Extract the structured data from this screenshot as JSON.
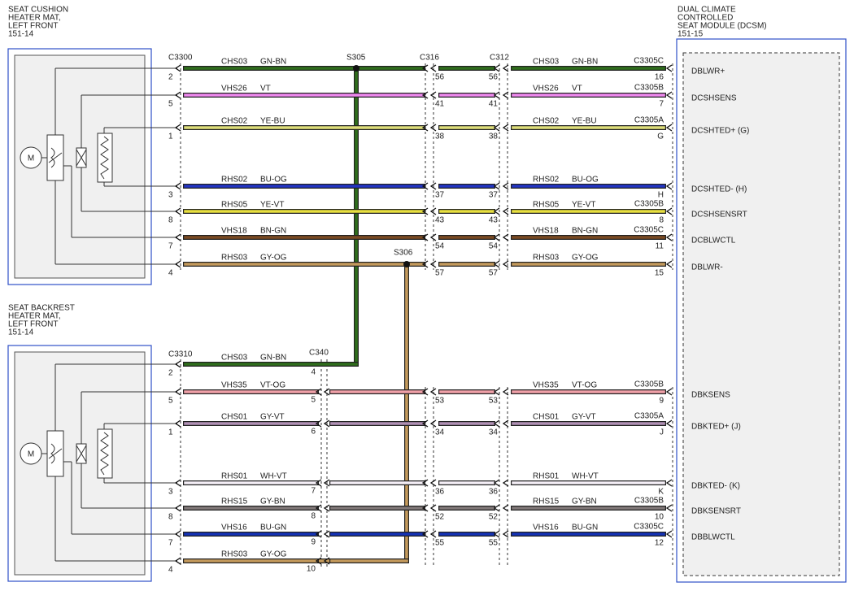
{
  "components": {
    "cushion": {
      "lines": [
        "SEAT CUSHION",
        "HEATER MAT,",
        "LEFT FRONT",
        "151-14"
      ],
      "motor": "M"
    },
    "backrest": {
      "lines": [
        "SEAT BACKREST",
        "HEATER MAT,",
        "LEFT FRONT",
        "151-14"
      ],
      "motor": "M"
    },
    "dcsm": {
      "lines": [
        "DUAL CLIMATE",
        "CONTROLLED",
        "SEAT MODULE (DCSM)",
        "151-15"
      ]
    }
  },
  "connectors": {
    "c3300": "C3300",
    "s305": "S305",
    "c316": "C316",
    "c312": "C312",
    "c3310": "C3310",
    "c340": "C340",
    "s306": "S306"
  },
  "top_rows": [
    {
      "left_pin": "2",
      "circuit": "CHS03",
      "color_code": "GN-BN",
      "wire_color": "#2f6e1c",
      "c316_pin": "56",
      "c312_pin": "56",
      "right_circuit": "CHS03",
      "right_color_code": "GN-BN",
      "right_connector": "C3305C",
      "right_pin": "16",
      "signal": "DBLWR+"
    },
    {
      "left_pin": "5",
      "circuit": "VHS26",
      "color_code": "VT",
      "wire_color": "#ee88ee",
      "c316_pin": "41",
      "c312_pin": "41",
      "right_circuit": "VHS26",
      "right_color_code": "VT",
      "right_connector": "C3305B",
      "right_pin": "7",
      "signal": "DCSHSENS"
    },
    {
      "left_pin": "1",
      "circuit": "CHS02",
      "color_code": "YE-BU",
      "wire_color": "#dede7a",
      "c316_pin": "38",
      "c312_pin": "38",
      "right_circuit": "CHS02",
      "right_color_code": "YE-BU",
      "right_connector": "C3305A",
      "right_pin": "G",
      "signal": "DCSHTED+ (G)"
    },
    {
      "left_pin": "3",
      "circuit": "RHS02",
      "color_code": "BU-OG",
      "wire_color": "#2234c4",
      "c316_pin": "37",
      "c312_pin": "37",
      "right_circuit": "RHS02",
      "right_color_code": "BU-OG",
      "right_pin": "H",
      "signal": "DCSHTED- (H)"
    },
    {
      "left_pin": "8",
      "circuit": "RHS05",
      "color_code": "YE-VT",
      "wire_color": "#e8e040",
      "c316_pin": "43",
      "c312_pin": "43",
      "right_circuit": "RHS05",
      "right_color_code": "YE-VT",
      "right_connector": "C3305B",
      "right_pin": "8",
      "signal": "DCSHSENSRT"
    },
    {
      "left_pin": "7",
      "circuit": "VHS18",
      "color_code": "BN-GN",
      "wire_color": "#7a4a22",
      "c316_pin": "54",
      "c312_pin": "54",
      "right_circuit": "VHS18",
      "right_color_code": "BN-GN",
      "right_connector": "C3305C",
      "right_pin": "11",
      "signal": "DCBLWCTL"
    },
    {
      "left_pin": "4",
      "circuit": "RHS03",
      "color_code": "GY-OG",
      "wire_color": "#c49a5c",
      "c316_pin": "57",
      "c312_pin": "57",
      "right_circuit": "RHS03",
      "right_color_code": "GY-OG",
      "right_pin": "15",
      "signal": "DBLWR-"
    }
  ],
  "bottom_rows": [
    {
      "left_pin": "2",
      "circuit": "CHS03",
      "color_code": "GN-BN",
      "wire_color": "#2f6e1c",
      "c340_pin": "4"
    },
    {
      "left_pin": "5",
      "circuit": "VHS35",
      "color_code": "VT-OG",
      "wire_color": "#f0a0a8",
      "c340_pin": "5",
      "c316_pin": "53",
      "c312_pin": "53",
      "right_circuit": "VHS35",
      "right_color_code": "VT-OG",
      "right_connector": "C3305B",
      "right_pin": "9",
      "signal": "DBKSENS"
    },
    {
      "left_pin": "1",
      "circuit": "CHS01",
      "color_code": "GY-VT",
      "wire_color": "#b090b4",
      "c340_pin": "6",
      "c316_pin": "34",
      "c312_pin": "34",
      "right_circuit": "CHS01",
      "right_color_code": "GY-VT",
      "right_connector": "C3305A",
      "right_pin": "J",
      "signal": "DBKTED+ (J)"
    },
    {
      "left_pin": "3",
      "circuit": "RHS01",
      "color_code": "WH-VT",
      "wire_color": "#f4eef6",
      "c340_pin": "7",
      "c316_pin": "36",
      "c312_pin": "36",
      "right_circuit": "RHS01",
      "right_color_code": "WH-VT",
      "right_pin": "K",
      "signal": "DBKTED- (K)"
    },
    {
      "left_pin": "8",
      "circuit": "RHS15",
      "color_code": "GY-BN",
      "wire_color": "#807878",
      "c340_pin": "8",
      "c316_pin": "52",
      "c312_pin": "52",
      "right_circuit": "RHS15",
      "right_color_code": "GY-BN",
      "right_connector": "C3305B",
      "right_pin": "10",
      "signal": "DBKSENSRT"
    },
    {
      "left_pin": "7",
      "circuit": "VHS16",
      "color_code": "BU-GN",
      "wire_color": "#1432b4",
      "c340_pin": "9",
      "c316_pin": "55",
      "c312_pin": "55",
      "right_circuit": "VHS16",
      "right_color_code": "BU-GN",
      "right_connector": "C3305C",
      "right_pin": "12",
      "signal": "DBBLWCTL"
    },
    {
      "left_pin": "4",
      "circuit": "RHS03",
      "color_code": "GY-OG",
      "wire_color": "#c49a5c",
      "c340_pin": "10"
    }
  ]
}
